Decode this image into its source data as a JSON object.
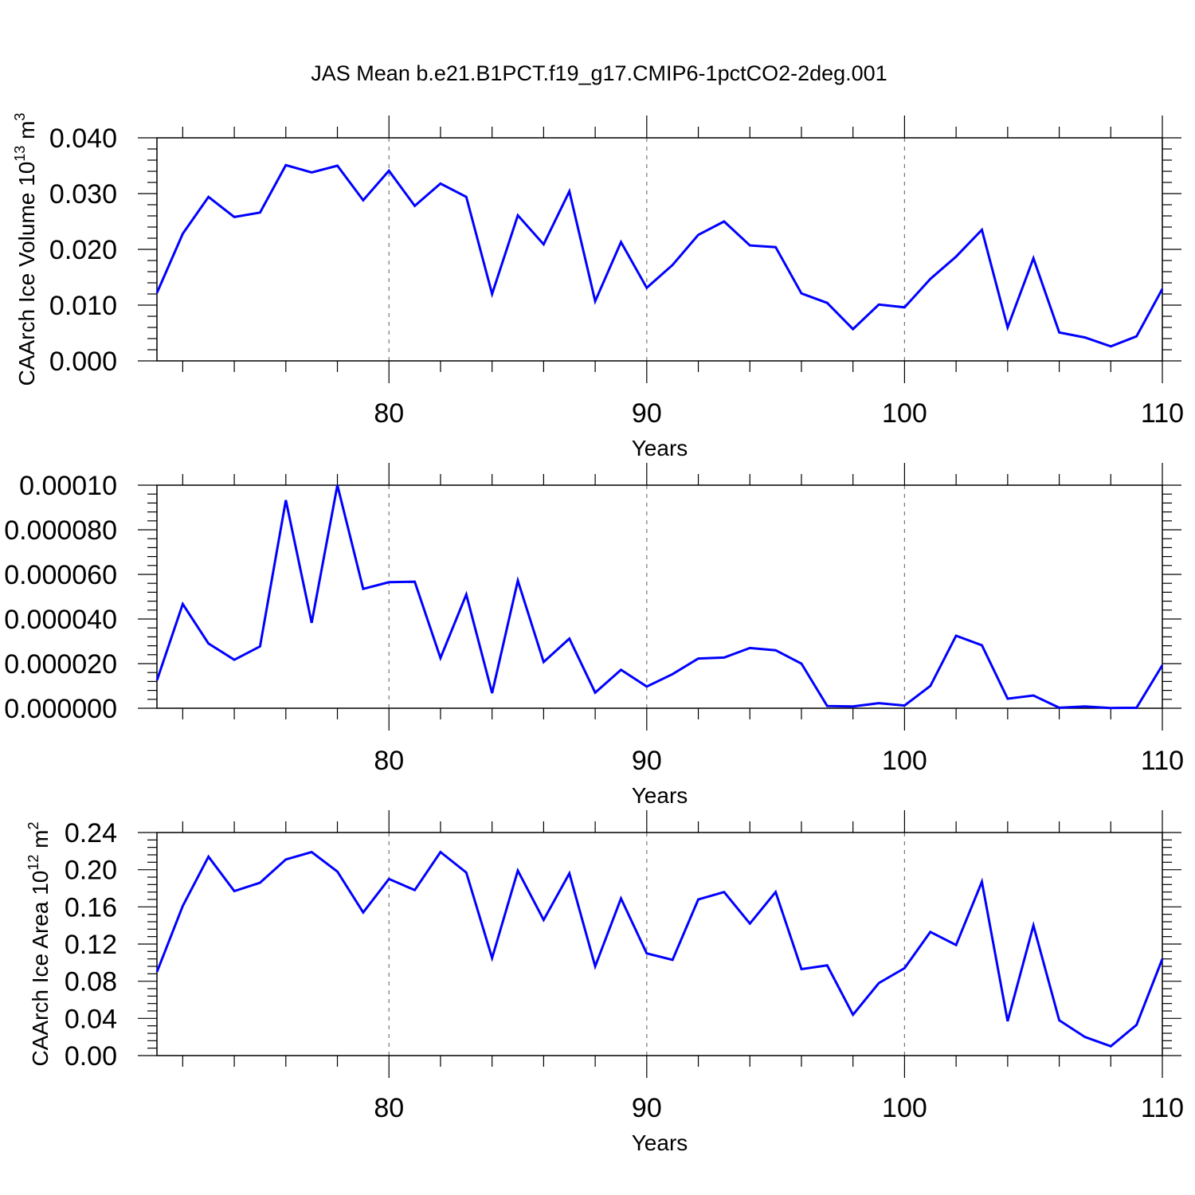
{
  "page": {
    "title": "JAS Mean b.e21.B1PCT.f19_g17.CMIP6-1pctCO2-2deg.001"
  },
  "colors": {
    "series": "#0000ff",
    "grid": "#777777",
    "frame": "#000000"
  },
  "chart_data": [
    {
      "type": "line",
      "name": "ice-volume",
      "title": "",
      "xlabel": "Years",
      "ylabel": "CAArch Ice Volume 10",
      "ylabel_exp": "13",
      "ylabel_unit": "m",
      "ylabel_unit_exp": "3",
      "xlim": [
        71,
        110
      ],
      "ylim": [
        0,
        0.04
      ],
      "xticks": [
        80,
        90,
        100,
        110
      ],
      "xtick_labels": [
        "80",
        "90",
        "100",
        "110"
      ],
      "yticks": [
        0,
        0.01,
        0.02,
        0.03,
        0.04
      ],
      "ytick_labels": [
        "0.000",
        "0.010",
        "0.020",
        "0.030",
        "0.040"
      ],
      "grid_x": [
        80,
        90,
        100
      ],
      "x": [
        71,
        72,
        73,
        74,
        75,
        76,
        77,
        78,
        79,
        80,
        81,
        82,
        83,
        84,
        85,
        86,
        87,
        88,
        89,
        90,
        91,
        92,
        93,
        94,
        95,
        96,
        97,
        98,
        99,
        100,
        101,
        102,
        103,
        104,
        105,
        106,
        107,
        108,
        109,
        110
      ],
      "values": [
        0.0122,
        0.0228,
        0.0294,
        0.0258,
        0.0266,
        0.0351,
        0.0338,
        0.035,
        0.0288,
        0.0341,
        0.0278,
        0.0318,
        0.0294,
        0.012,
        0.0261,
        0.0209,
        0.0304,
        0.0107,
        0.0213,
        0.0131,
        0.0172,
        0.0226,
        0.025,
        0.0207,
        0.0204,
        0.0121,
        0.0104,
        0.0057,
        0.0101,
        0.0096,
        0.0147,
        0.0187,
        0.0235,
        0.006,
        0.0184,
        0.0051,
        0.0042,
        0.0026,
        0.0044,
        0.0129
      ]
    },
    {
      "type": "line",
      "name": "middle-panel",
      "title": "",
      "xlabel": "Years",
      "ylabel": "",
      "xlim": [
        71,
        110
      ],
      "ylim": [
        0,
        0.0001
      ],
      "xticks": [
        80,
        90,
        100,
        110
      ],
      "xtick_labels": [
        "80",
        "90",
        "100",
        "110"
      ],
      "yticks": [
        0,
        2e-05,
        4e-05,
        6e-05,
        8e-05,
        0.0001
      ],
      "ytick_labels": [
        "0.000000",
        "0.000020",
        "0.000040",
        "0.000060",
        "0.000080",
        "0.00010"
      ],
      "grid_x": [
        80,
        90,
        100
      ],
      "x": [
        71,
        72,
        73,
        74,
        75,
        76,
        77,
        78,
        79,
        80,
        81,
        82,
        83,
        84,
        85,
        86,
        87,
        88,
        89,
        90,
        91,
        92,
        93,
        94,
        95,
        96,
        97,
        98,
        99,
        100,
        101,
        102,
        103,
        104,
        105,
        106,
        107,
        108,
        109,
        110
      ],
      "values": [
        1.25e-05,
        4.67e-05,
        2.9e-05,
        2.17e-05,
        2.77e-05,
        9.33e-05,
        3.83e-05,
        0.0001,
        5.35e-05,
        5.65e-05,
        5.67e-05,
        2.25e-05,
        5.1e-05,
        6.8e-06,
        5.72e-05,
        2.07e-05,
        3.12e-05,
        7e-06,
        1.72e-05,
        9.7e-06,
        1.53e-05,
        2.23e-05,
        2.27e-05,
        2.7e-05,
        2.6e-05,
        2e-05,
        1e-06,
        8e-07,
        2.3e-06,
        1.2e-06,
        1e-05,
        3.25e-05,
        2.82e-05,
        4.3e-06,
        5.7e-06,
        2e-07,
        8e-07,
        1e-07,
        2e-07,
        1.93e-05
      ]
    },
    {
      "type": "line",
      "name": "ice-area",
      "title": "",
      "xlabel": "Years",
      "ylabel": "CAArch Ice Area 10",
      "ylabel_exp": "12",
      "ylabel_unit": "m",
      "ylabel_unit_exp": "2",
      "xlim": [
        71,
        110
      ],
      "ylim": [
        0,
        0.24
      ],
      "xticks": [
        80,
        90,
        100,
        110
      ],
      "xtick_labels": [
        "80",
        "90",
        "100",
        "110"
      ],
      "yticks": [
        0,
        0.04,
        0.08,
        0.12,
        0.16,
        0.2,
        0.24
      ],
      "ytick_labels": [
        "0.00",
        "0.04",
        "0.08",
        "0.12",
        "0.16",
        "0.20",
        "0.24"
      ],
      "grid_x": [
        80,
        90,
        100
      ],
      "x": [
        71,
        72,
        73,
        74,
        75,
        76,
        77,
        78,
        79,
        80,
        81,
        82,
        83,
        84,
        85,
        86,
        87,
        88,
        89,
        90,
        91,
        92,
        93,
        94,
        95,
        96,
        97,
        98,
        99,
        100,
        101,
        102,
        103,
        104,
        105,
        106,
        107,
        108,
        109,
        110
      ],
      "values": [
        0.09,
        0.161,
        0.214,
        0.177,
        0.186,
        0.211,
        0.219,
        0.198,
        0.154,
        0.19,
        0.178,
        0.219,
        0.197,
        0.105,
        0.199,
        0.146,
        0.196,
        0.096,
        0.169,
        0.11,
        0.103,
        0.168,
        0.176,
        0.142,
        0.176,
        0.093,
        0.097,
        0.044,
        0.078,
        0.094,
        0.133,
        0.119,
        0.187,
        0.037,
        0.14,
        0.038,
        0.02,
        0.01,
        0.033,
        0.104
      ]
    }
  ]
}
